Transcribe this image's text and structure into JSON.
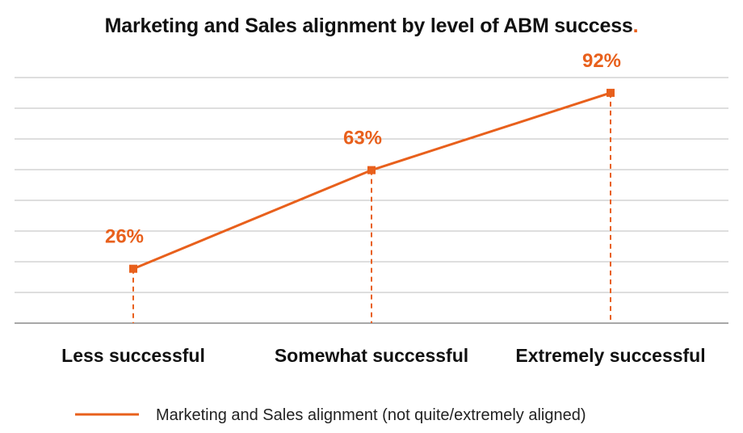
{
  "chart_data": {
    "type": "line",
    "title": "Marketing and Sales alignment by level of ABM success",
    "title_accent": ".",
    "categories": [
      "Less successful",
      "Somewhat successful",
      "Extremely successful"
    ],
    "series": [
      {
        "name": "Marketing and Sales alignment (not quite/extremely aligned)",
        "values": [
          26,
          63,
          92
        ],
        "value_labels": [
          "26%",
          "63%",
          "92%"
        ],
        "color": "#e8601c"
      }
    ],
    "xlabel": "",
    "ylabel": "",
    "ylim": [
      0,
      100
    ],
    "gridlines": 8,
    "grid": true,
    "drop_lines": true,
    "legend": "bottom",
    "colors": {
      "series": "#e8601c",
      "grid": "#bdbdbd",
      "baseline": "#8a8a8a",
      "text": "#111111"
    }
  }
}
